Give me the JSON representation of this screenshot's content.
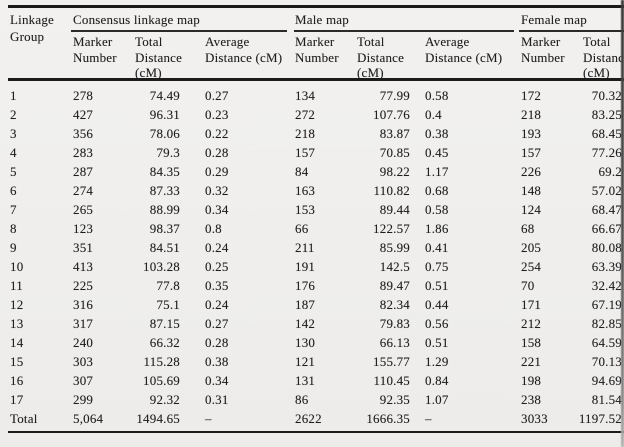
{
  "table": {
    "row_group_header": "Linkage\nGroup",
    "sections": [
      {
        "label": "Consensus linkage map",
        "columns": [
          "Marker\nNumber",
          "Total\nDistance\n(cM)",
          "Average\nDistance (cM)"
        ]
      },
      {
        "label": "Male map",
        "columns": [
          "Marker\nNumber",
          "Total\nDistance\n(cM)",
          "Average\nDistance (cM)"
        ]
      },
      {
        "label": "Female map",
        "columns": [
          "Marker\nNumber",
          "Total\nDistance\n(cM)"
        ]
      }
    ],
    "rows": [
      [
        "1",
        "278",
        "74.49",
        "0.27",
        "134",
        "77.99",
        "0.58",
        "172",
        "70.32"
      ],
      [
        "2",
        "427",
        "96.31",
        "0.23",
        "272",
        "107.76",
        "0.4",
        "218",
        "83.25"
      ],
      [
        "3",
        "356",
        "78.06",
        "0.22",
        "218",
        "83.87",
        "0.38",
        "193",
        "68.45"
      ],
      [
        "4",
        "283",
        "79.3",
        "0.28",
        "157",
        "70.85",
        "0.45",
        "157",
        "77.26"
      ],
      [
        "5",
        "287",
        "84.35",
        "0.29",
        "84",
        "98.22",
        "1.17",
        "226",
        "69.2"
      ],
      [
        "6",
        "274",
        "87.33",
        "0.32",
        "163",
        "110.82",
        "0.68",
        "148",
        "57.02"
      ],
      [
        "7",
        "265",
        "88.99",
        "0.34",
        "153",
        "89.44",
        "0.58",
        "124",
        "68.47"
      ],
      [
        "8",
        "123",
        "98.37",
        "0.8",
        "66",
        "122.57",
        "1.86",
        "68",
        "66.67"
      ],
      [
        "9",
        "351",
        "84.51",
        "0.24",
        "211",
        "85.99",
        "0.41",
        "205",
        "80.08"
      ],
      [
        "10",
        "413",
        "103.28",
        "0.25",
        "191",
        "142.5",
        "0.75",
        "254",
        "63.39"
      ],
      [
        "11",
        "225",
        "77.8",
        "0.35",
        "176",
        "89.47",
        "0.51",
        "70",
        "32.42"
      ],
      [
        "12",
        "316",
        "75.1",
        "0.24",
        "187",
        "82.34",
        "0.44",
        "171",
        "67.19"
      ],
      [
        "13",
        "317",
        "87.15",
        "0.27",
        "142",
        "79.83",
        "0.56",
        "212",
        "82.85"
      ],
      [
        "14",
        "240",
        "66.32",
        "0.28",
        "130",
        "66.13",
        "0.51",
        "158",
        "64.59"
      ],
      [
        "15",
        "303",
        "115.28",
        "0.38",
        "121",
        "155.77",
        "1.29",
        "221",
        "70.13"
      ],
      [
        "16",
        "307",
        "105.69",
        "0.34",
        "131",
        "110.45",
        "0.84",
        "198",
        "94.69"
      ],
      [
        "17",
        "299",
        "92.32",
        "0.31",
        "86",
        "92.35",
        "1.07",
        "238",
        "81.54"
      ],
      [
        "Total",
        "5,064",
        "1494.65",
        "–",
        "2622",
        "1666.35",
        "–",
        "3033",
        "1197.52"
      ]
    ]
  }
}
